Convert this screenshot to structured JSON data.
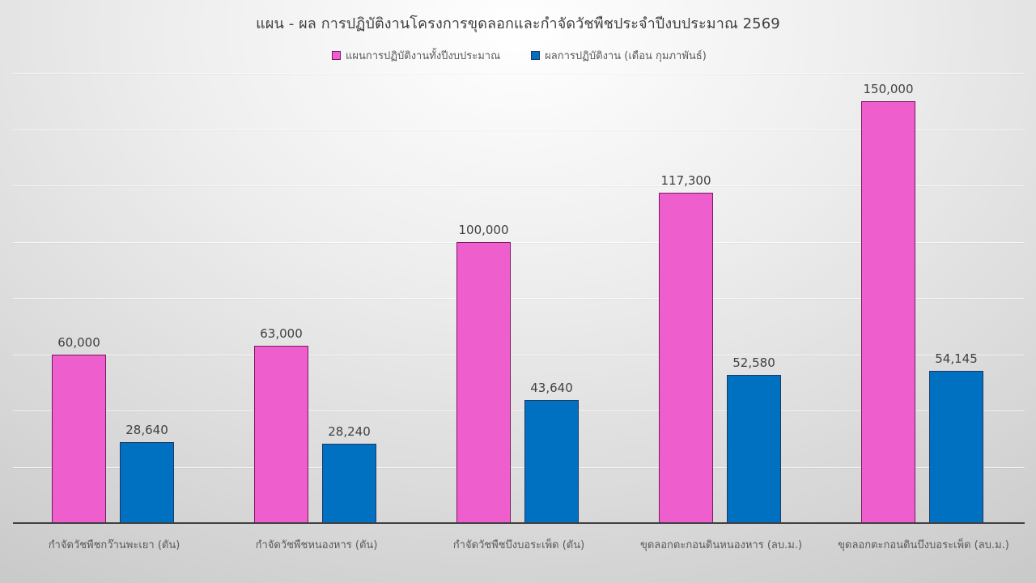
{
  "chart_data": {
    "type": "bar",
    "title": "แผน - ผล การปฏิบัติงานโครงการขุดลอกและกำจัดวัชพืชประจำปีงบประมาณ 2569",
    "categories": [
      "กำจัดวัชพืชกว๊านพะเยา (ตัน)",
      "กำจัดวัชพืชหนองหาร (ตัน)",
      "กำจัดวัชพืชบึงบอระเพ็ด (ตัน)",
      "ขุดลอกตะกอนดินหนองหาร (ลบ.ม.)",
      "ขุดลอกตะกอนดินบึงบอระเพ็ด (ลบ.ม.)"
    ],
    "series": [
      {
        "name": "แผนการปฏิบัติงานทั้งปีงบประมาณ",
        "color": "#EE5FCD",
        "border": "#7a1a60",
        "values": [
          60000,
          63000,
          100000,
          117300,
          150000
        ],
        "labels": [
          "60,000",
          "63,000",
          "100,000",
          "117,300",
          "150,000"
        ]
      },
      {
        "name": "ผลการปฏิบัติงาน (เดือน กุมภาพันธ์)",
        "color": "#0070C0",
        "border": "#1f3864",
        "values": [
          28640,
          28240,
          43640,
          52580,
          54145
        ],
        "labels": [
          "28,640",
          "28,240",
          "43,640",
          "52,580",
          "54,145"
        ]
      }
    ],
    "xlabel": "",
    "ylabel": "",
    "ylim": [
      0,
      160000
    ],
    "y_gridline_step": 20000,
    "y_axis_visible": false,
    "grid": true,
    "legend_position": "top",
    "data_labels": true
  }
}
